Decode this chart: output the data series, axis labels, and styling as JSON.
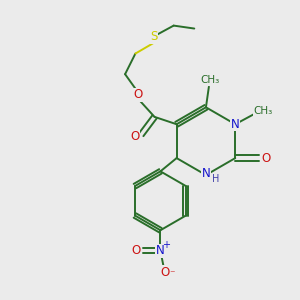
{
  "bg_color": "#ebebeb",
  "atom_colors": {
    "C": "#2a6e2a",
    "N": "#1414cc",
    "O": "#cc1414",
    "S": "#cccc00",
    "H": "#4444aa"
  },
  "figsize": [
    3.0,
    3.0
  ],
  "dpi": 100
}
